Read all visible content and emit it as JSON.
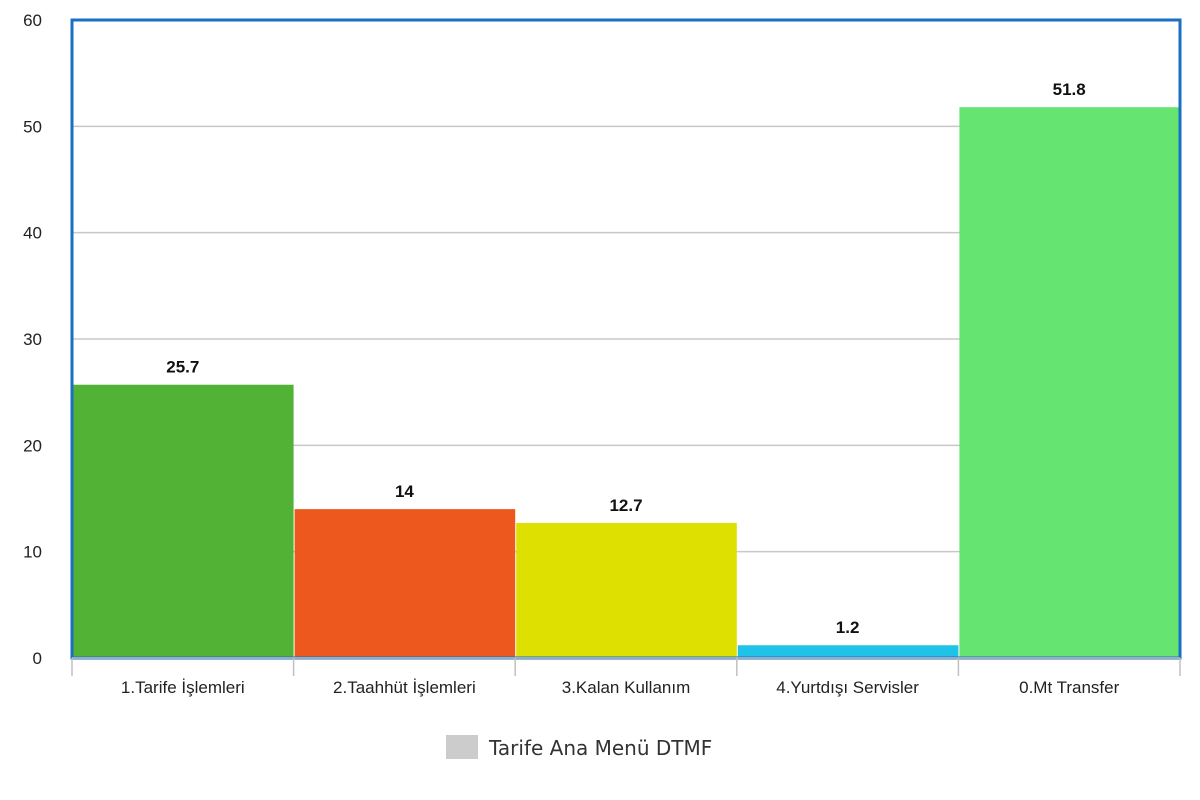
{
  "chart_data": {
    "type": "bar",
    "categories": [
      "1.Tarife İşlemleri",
      "2.Taahhüt İşlemleri",
      "3.Kalan Kullanım",
      "4.Yurtdışı Servisler",
      "0.Mt Transfer"
    ],
    "series": [
      {
        "name": "Tarife Ana Menü DTMF",
        "values": [
          25.7,
          14,
          12.7,
          1.2,
          51.8
        ],
        "data_labels": [
          "25.7",
          "14",
          "12.7",
          "1.2",
          "51.8"
        ]
      }
    ],
    "bar_colors": [
      "#52b236",
      "#ec581e",
      "#dde000",
      "#1fc3e8",
      "#66e472"
    ],
    "ylim": [
      0,
      60
    ],
    "yticks": [
      "0",
      "10",
      "20",
      "30",
      "40",
      "50",
      "60"
    ],
    "grid": true,
    "legend_position": "bottom-center",
    "legend_swatch_color": "#cccccc",
    "frame_color": "#1a6fc4",
    "title": "",
    "xlabel": "",
    "ylabel": ""
  }
}
